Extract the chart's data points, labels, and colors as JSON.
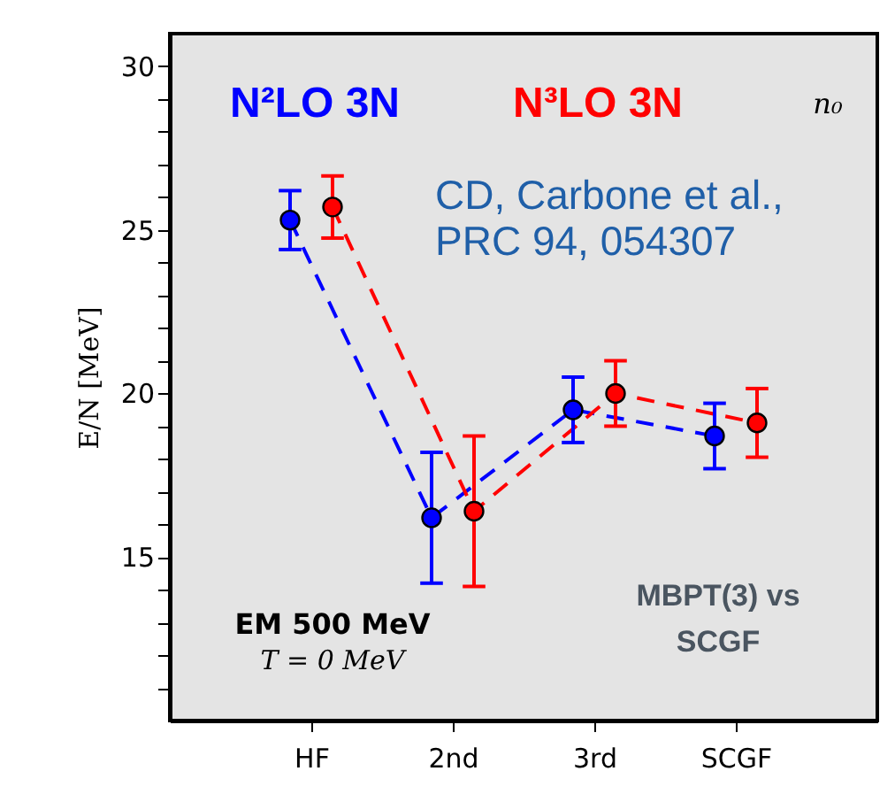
{
  "chart_data": {
    "type": "line",
    "ylabel": "E/N [MeV]",
    "series": [
      {
        "name": "N²LO 3N",
        "color": "#0000ff",
        "x": [
          0.85,
          1.85,
          2.85,
          3.85
        ],
        "values": [
          25.3,
          16.2,
          19.5,
          18.7
        ],
        "errors": [
          0.9,
          2.0,
          1.0,
          1.0
        ]
      },
      {
        "name": "N³LO 3N",
        "color": "#ff0000",
        "x": [
          1.15,
          2.15,
          3.15,
          4.15
        ],
        "values": [
          25.7,
          16.4,
          20.0,
          19.1
        ],
        "errors": [
          0.95,
          2.3,
          1.0,
          1.05
        ]
      }
    ],
    "xlim": [
      0,
      5
    ],
    "xticks": [
      {
        "value": 1,
        "label": "HF"
      },
      {
        "value": 2,
        "label": "2nd"
      },
      {
        "value": 3,
        "label": "3rd"
      },
      {
        "value": 4,
        "label": "SCGF"
      }
    ],
    "ylim": [
      10,
      31
    ],
    "yticks": [
      {
        "value": 11,
        "label": null
      },
      {
        "value": 12,
        "label": null
      },
      {
        "value": 13,
        "label": null
      },
      {
        "value": 14,
        "label": null
      },
      15,
      {
        "value": 16,
        "label": null
      },
      {
        "value": 17,
        "label": null
      },
      {
        "value": 18,
        "label": null
      },
      {
        "value": 19,
        "label": null
      },
      20,
      {
        "value": 21,
        "label": null
      },
      {
        "value": 22,
        "label": null
      },
      {
        "value": 23,
        "label": null
      },
      {
        "value": 24,
        "label": null
      },
      25,
      {
        "value": 26,
        "label": null
      },
      {
        "value": 27,
        "label": null
      },
      {
        "value": 28,
        "label": null
      },
      {
        "value": 29,
        "label": null
      },
      30
    ],
    "annotations": [
      "CD, Carbone et al.,\nPRC 94, 054307",
      "EM 500 MeV",
      "T = 0 MeV",
      "MBPT(3) vs\nSCGF",
      "n₀"
    ],
    "legend": "top",
    "marker": "circle",
    "line_style": "dashed",
    "grid": false
  }
}
